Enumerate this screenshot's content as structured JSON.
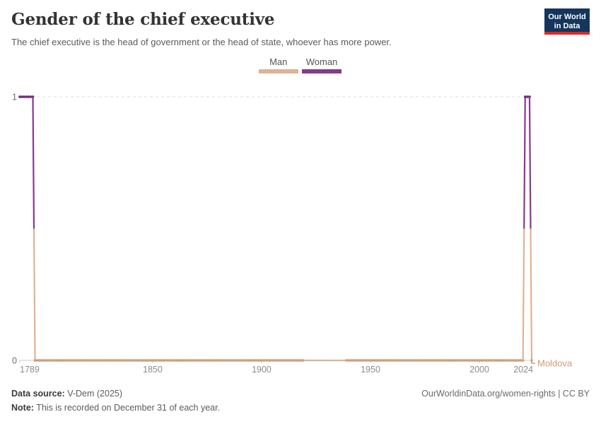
{
  "header": {
    "title": "Gender of the chief executive",
    "subtitle": "The chief executive is the head of government or the head of state, whoever has more power.",
    "logo": {
      "line1": "Our World",
      "line2": "in Data",
      "bg": "#14355C",
      "accent": "#E0281E"
    }
  },
  "legend": {
    "items": [
      {
        "label": "Man",
        "color": "#DFB294"
      },
      {
        "label": "Woman",
        "color": "#87398E"
      }
    ]
  },
  "chart_data": {
    "type": "line",
    "title": "Gender of the chief executive",
    "entity": "Moldova",
    "xlabel": "",
    "ylabel": "",
    "x_range": [
      1789,
      2024
    ],
    "ylim": [
      0,
      1
    ],
    "x_ticks": [
      1789,
      1850,
      1900,
      1950,
      2000,
      2024
    ],
    "y_ticks": [
      0,
      1
    ],
    "grid": "dashed line at y=1 only, solid axis at y=0",
    "legend_position": "top-center",
    "value_categories": {
      "0": "Man",
      "1": "Woman"
    },
    "colors": {
      "man": "#DFB294",
      "man_marker": "#D49E7A",
      "woman": "#87398E",
      "woman_marker": "#702F77",
      "entity_label": "#CF9B76",
      "grid": "#DDDDDD",
      "axis": "#CCCCCC",
      "tick_text": "#8C8C8C",
      "ytick_text": "#6E6E6E"
    },
    "series": [
      {
        "name": "Moldova",
        "steps": [
          {
            "start_year": 1789,
            "end_year": 1795,
            "value": 1,
            "category": "Woman"
          },
          {
            "start_year": 1796,
            "end_year": 2020,
            "value": 0,
            "category": "Man"
          },
          {
            "start_year": 2021,
            "end_year": 2023,
            "value": 1,
            "category": "Woman"
          },
          {
            "start_year": 2024,
            "end_year": 2024,
            "value": 0,
            "category": "Man"
          }
        ],
        "no_marker_years": [
          [
            1920,
            1938
          ]
        ]
      }
    ]
  },
  "footer": {
    "source_label": "Data source:",
    "source_value": " V-Dem (2025)",
    "note_label": "Note:",
    "note_value": " This is recorded on December 31 of each year.",
    "credit": "OurWorldinData.org/women-rights | CC BY"
  }
}
